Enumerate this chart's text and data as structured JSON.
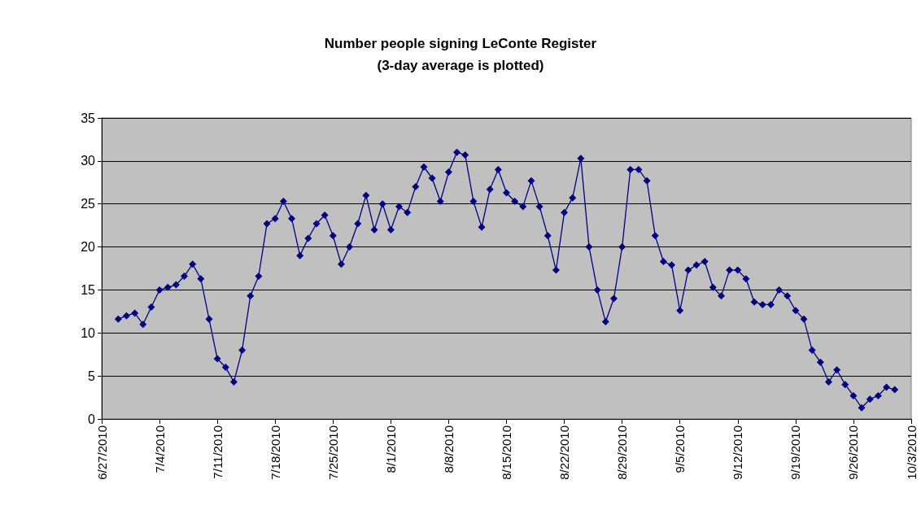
{
  "chart_data": {
    "type": "line",
    "title": "Number people signing LeConte Register",
    "subtitle": "(3-day average is plotted)",
    "x": [
      "2010-06-29",
      "2010-06-30",
      "2010-07-01",
      "2010-07-02",
      "2010-07-03",
      "2010-07-04",
      "2010-07-05",
      "2010-07-06",
      "2010-07-07",
      "2010-07-08",
      "2010-07-09",
      "2010-07-10",
      "2010-07-11",
      "2010-07-12",
      "2010-07-13",
      "2010-07-14",
      "2010-07-15",
      "2010-07-16",
      "2010-07-17",
      "2010-07-18",
      "2010-07-19",
      "2010-07-20",
      "2010-07-21",
      "2010-07-22",
      "2010-07-23",
      "2010-07-24",
      "2010-07-25",
      "2010-07-26",
      "2010-07-27",
      "2010-07-28",
      "2010-07-29",
      "2010-07-30",
      "2010-07-31",
      "2010-08-01",
      "2010-08-02",
      "2010-08-03",
      "2010-08-04",
      "2010-08-05",
      "2010-08-06",
      "2010-08-07",
      "2010-08-08",
      "2010-08-09",
      "2010-08-10",
      "2010-08-11",
      "2010-08-12",
      "2010-08-13",
      "2010-08-14",
      "2010-08-15",
      "2010-08-16",
      "2010-08-17",
      "2010-08-18",
      "2010-08-19",
      "2010-08-20",
      "2010-08-21",
      "2010-08-22",
      "2010-08-23",
      "2010-08-24",
      "2010-08-25",
      "2010-08-26",
      "2010-08-27",
      "2010-08-28",
      "2010-08-29",
      "2010-08-30",
      "2010-08-31",
      "2010-09-01",
      "2010-09-02",
      "2010-09-03",
      "2010-09-04",
      "2010-09-05",
      "2010-09-06",
      "2010-09-07",
      "2010-09-08",
      "2010-09-09",
      "2010-09-10",
      "2010-09-11",
      "2010-09-12",
      "2010-09-13",
      "2010-09-14",
      "2010-09-15",
      "2010-09-16",
      "2010-09-17",
      "2010-09-18",
      "2010-09-19",
      "2010-09-20",
      "2010-09-21",
      "2010-09-22",
      "2010-09-23",
      "2010-09-24",
      "2010-09-25",
      "2010-09-26",
      "2010-09-27",
      "2010-09-28",
      "2010-09-29",
      "2010-09-30",
      "2010-10-01"
    ],
    "series": [
      {
        "color": "#000080",
        "values": [
          11.6,
          12.0,
          12.3,
          11.0,
          13.0,
          15.0,
          15.3,
          15.6,
          16.6,
          18.0,
          16.3,
          11.6,
          7.0,
          6.0,
          4.3,
          8.0,
          14.3,
          16.6,
          22.7,
          23.3,
          25.3,
          23.3,
          19.0,
          21.0,
          22.7,
          23.7,
          21.3,
          18.0,
          20.0,
          22.7,
          26.0,
          22.0,
          25.0,
          22.0,
          24.7,
          24.0,
          27.0,
          29.3,
          28.0,
          25.3,
          28.7,
          31.0,
          30.7,
          25.3,
          22.3,
          26.7,
          29.0,
          26.3,
          25.3,
          24.7,
          27.7,
          24.7,
          21.3,
          17.3,
          24.0,
          25.7,
          30.3,
          20.0,
          15.0,
          11.3,
          14.0,
          20.0,
          29.0,
          29.0,
          27.7,
          21.3,
          18.3,
          17.9,
          12.6,
          17.3,
          17.9,
          18.3,
          15.3,
          14.3,
          17.3,
          17.3,
          16.3,
          13.6,
          13.3,
          13.3,
          15.0,
          14.3,
          12.6,
          11.6,
          8.0,
          6.6,
          4.3,
          5.7,
          4.0,
          2.7,
          1.3,
          2.3,
          2.7,
          3.7,
          3.4
        ]
      }
    ],
    "xlim": [
      "2010-06-27",
      "2010-10-03"
    ],
    "xticks": [
      {
        "value": "2010-06-27",
        "label": "6/27/2010"
      },
      {
        "value": "2010-07-04",
        "label": "7/4/2010"
      },
      {
        "value": "2010-07-11",
        "label": "7/11/2010"
      },
      {
        "value": "2010-07-18",
        "label": "7/18/2010"
      },
      {
        "value": "2010-07-25",
        "label": "7/25/2010"
      },
      {
        "value": "2010-08-01",
        "label": "8/1/2010"
      },
      {
        "value": "2010-08-08",
        "label": "8/8/2010"
      },
      {
        "value": "2010-08-15",
        "label": "8/15/2010"
      },
      {
        "value": "2010-08-22",
        "label": "8/22/2010"
      },
      {
        "value": "2010-08-29",
        "label": "8/29/2010"
      },
      {
        "value": "2010-09-05",
        "label": "9/5/2010"
      },
      {
        "value": "2010-09-12",
        "label": "9/12/2010"
      },
      {
        "value": "2010-09-19",
        "label": "9/19/2010"
      },
      {
        "value": "2010-09-26",
        "label": "9/26/2010"
      },
      {
        "value": "2010-10-03",
        "label": "10/3/2010"
      }
    ],
    "ylim": [
      0,
      35
    ],
    "yticks": [
      0,
      5,
      10,
      15,
      20,
      25,
      30,
      35
    ],
    "grid": "y",
    "marker": "diamond",
    "line_style": "solid"
  }
}
